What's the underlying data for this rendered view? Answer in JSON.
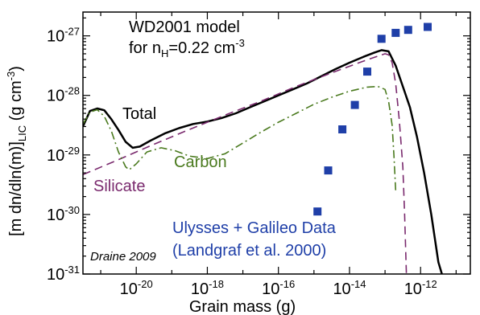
{
  "chart_data": {
    "type": "line",
    "xlabel": "Grain mass (g)",
    "ylabel_main": "[m dn/dln(m)]",
    "ylabel_sub": "LIC",
    "ylabel_unit_open": " (g cm",
    "ylabel_unit_exp": "-3",
    "ylabel_unit_close": ")",
    "xscale": "log",
    "yscale": "log",
    "xlim_log10": [
      -21.5,
      -10.6
    ],
    "ylim_log10": [
      -31,
      -26.6
    ],
    "x_ticks": [
      {
        "base": "10",
        "exp": "-20",
        "log": -20
      },
      {
        "base": "10",
        "exp": "-18",
        "log": -18
      },
      {
        "base": "10",
        "exp": "-16",
        "log": -16
      },
      {
        "base": "10",
        "exp": "-14",
        "log": -14
      },
      {
        "base": "10",
        "exp": "-12",
        "log": -12
      }
    ],
    "y_ticks": [
      {
        "base": "10",
        "exp": "-31",
        "log": -31
      },
      {
        "base": "10",
        "exp": "-30",
        "log": -30
      },
      {
        "base": "10",
        "exp": "-29",
        "log": -29
      },
      {
        "base": "10",
        "exp": "-28",
        "log": -28
      },
      {
        "base": "10",
        "exp": "-27",
        "log": -27
      }
    ],
    "title_line1": "WD2001 model",
    "title_line2_pre": "for n",
    "title_line2_sub": "H",
    "title_line2_mid": "=0.22 cm",
    "title_line2_exp": "-3",
    "credit": "Draine 2009",
    "data_label_line1": "Ulysses + Galileo Data",
    "data_label_line2": "(Landgraf et al. 2000)",
    "series": [
      {
        "name": "Total",
        "color": "#000000",
        "style": "solid",
        "log_points": [
          [
            -21.5,
            -28.52
          ],
          [
            -21.3,
            -28.26
          ],
          [
            -21.1,
            -28.22
          ],
          [
            -20.9,
            -28.25
          ],
          [
            -20.7,
            -28.4
          ],
          [
            -20.5,
            -28.58
          ],
          [
            -20.3,
            -28.78
          ],
          [
            -20.1,
            -28.88
          ],
          [
            -19.9,
            -28.86
          ],
          [
            -19.6,
            -28.76
          ],
          [
            -19.2,
            -28.64
          ],
          [
            -18.8,
            -28.55
          ],
          [
            -18.4,
            -28.48
          ],
          [
            -18.0,
            -28.44
          ],
          [
            -17.6,
            -28.38
          ],
          [
            -17.2,
            -28.3
          ],
          [
            -16.8,
            -28.2
          ],
          [
            -16.4,
            -28.1
          ],
          [
            -16.0,
            -28.0
          ],
          [
            -15.6,
            -27.9
          ],
          [
            -15.2,
            -27.8
          ],
          [
            -14.8,
            -27.68
          ],
          [
            -14.4,
            -27.56
          ],
          [
            -14.0,
            -27.45
          ],
          [
            -13.6,
            -27.35
          ],
          [
            -13.3,
            -27.28
          ],
          [
            -13.1,
            -27.24
          ],
          [
            -12.9,
            -27.26
          ],
          [
            -12.7,
            -27.5
          ],
          [
            -12.5,
            -27.85
          ],
          [
            -12.3,
            -28.2
          ],
          [
            -12.1,
            -28.7
          ],
          [
            -11.9,
            -29.3
          ],
          [
            -11.7,
            -30.0
          ],
          [
            -11.5,
            -30.8
          ],
          [
            -11.4,
            -31.0
          ]
        ]
      },
      {
        "name": "Silicate",
        "color": "#7a2a6e",
        "style": "dashed",
        "log_points": [
          [
            -21.5,
            -29.33
          ],
          [
            -20.5,
            -29.08
          ],
          [
            -19.5,
            -28.82
          ],
          [
            -18.5,
            -28.57
          ],
          [
            -17.5,
            -28.33
          ],
          [
            -16.5,
            -28.1
          ],
          [
            -15.5,
            -27.85
          ],
          [
            -14.5,
            -27.62
          ],
          [
            -13.5,
            -27.4
          ],
          [
            -13.0,
            -27.3
          ],
          [
            -12.9,
            -27.32
          ],
          [
            -12.8,
            -27.45
          ],
          [
            -12.7,
            -27.8
          ],
          [
            -12.6,
            -28.4
          ],
          [
            -12.5,
            -29.2
          ],
          [
            -12.45,
            -30.0
          ],
          [
            -12.4,
            -31.0
          ]
        ]
      },
      {
        "name": "Carbon",
        "color": "#4a7a1e",
        "style": "dashdot",
        "log_points": [
          [
            -21.5,
            -28.48
          ],
          [
            -21.3,
            -28.28
          ],
          [
            -21.1,
            -28.24
          ],
          [
            -20.9,
            -28.35
          ],
          [
            -20.7,
            -28.6
          ],
          [
            -20.5,
            -28.95
          ],
          [
            -20.3,
            -29.2
          ],
          [
            -20.2,
            -29.25
          ],
          [
            -20.0,
            -29.15
          ],
          [
            -19.7,
            -28.95
          ],
          [
            -19.3,
            -28.88
          ],
          [
            -18.9,
            -28.93
          ],
          [
            -18.5,
            -29.02
          ],
          [
            -18.0,
            -29.06
          ],
          [
            -17.5,
            -28.98
          ],
          [
            -17.0,
            -28.8
          ],
          [
            -16.5,
            -28.62
          ],
          [
            -16.0,
            -28.45
          ],
          [
            -15.5,
            -28.3
          ],
          [
            -15.0,
            -28.15
          ],
          [
            -14.5,
            -28.03
          ],
          [
            -14.0,
            -27.93
          ],
          [
            -13.5,
            -27.86
          ],
          [
            -13.2,
            -27.85
          ],
          [
            -13.0,
            -27.9
          ],
          [
            -12.9,
            -28.1
          ],
          [
            -12.8,
            -28.5
          ],
          [
            -12.75,
            -29.0
          ],
          [
            -12.7,
            -29.6
          ]
        ]
      }
    ],
    "data_points": {
      "name": "Ulysses + Galileo Data",
      "color": "#1f3fa8",
      "log_points": [
        [
          -14.9,
          -29.95
        ],
        [
          -14.6,
          -29.26
        ],
        [
          -14.2,
          -28.57
        ],
        [
          -13.85,
          -28.16
        ],
        [
          -13.5,
          -27.6
        ],
        [
          -13.1,
          -27.05
        ],
        [
          -12.7,
          -26.95
        ],
        [
          -12.35,
          -26.9
        ],
        [
          -11.8,
          -26.85
        ]
      ]
    }
  }
}
